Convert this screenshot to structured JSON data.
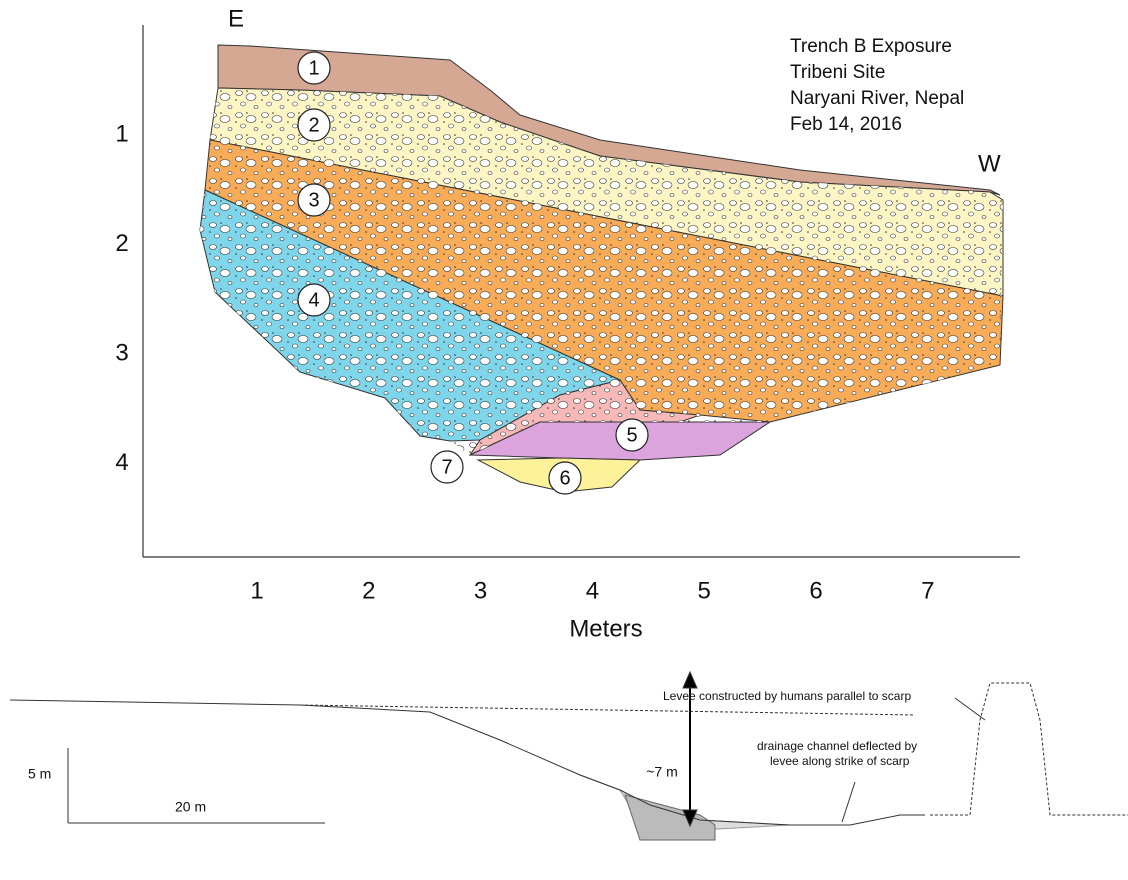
{
  "header": {
    "title_lines": [
      "Trench B Exposure",
      "Tribeni Site",
      "Naryani River, Nepal",
      "Feb 14, 2016"
    ],
    "east": "E",
    "west": "W"
  },
  "axes": {
    "y_ticks": [
      1,
      2,
      3,
      4
    ],
    "x_ticks": [
      1,
      2,
      3,
      4,
      5,
      6,
      7
    ],
    "x_label": "Meters"
  },
  "units": [
    1,
    2,
    3,
    4,
    5,
    6,
    7
  ],
  "profile": {
    "levee_note": "Levee constructed by humans parallel to scarp",
    "height": "~7 m",
    "channel_note": [
      "drainage channel deflected by",
      "levee along strike of scarp"
    ]
  },
  "scale": {
    "vertical": "5 m",
    "horizontal": "20 m"
  }
}
